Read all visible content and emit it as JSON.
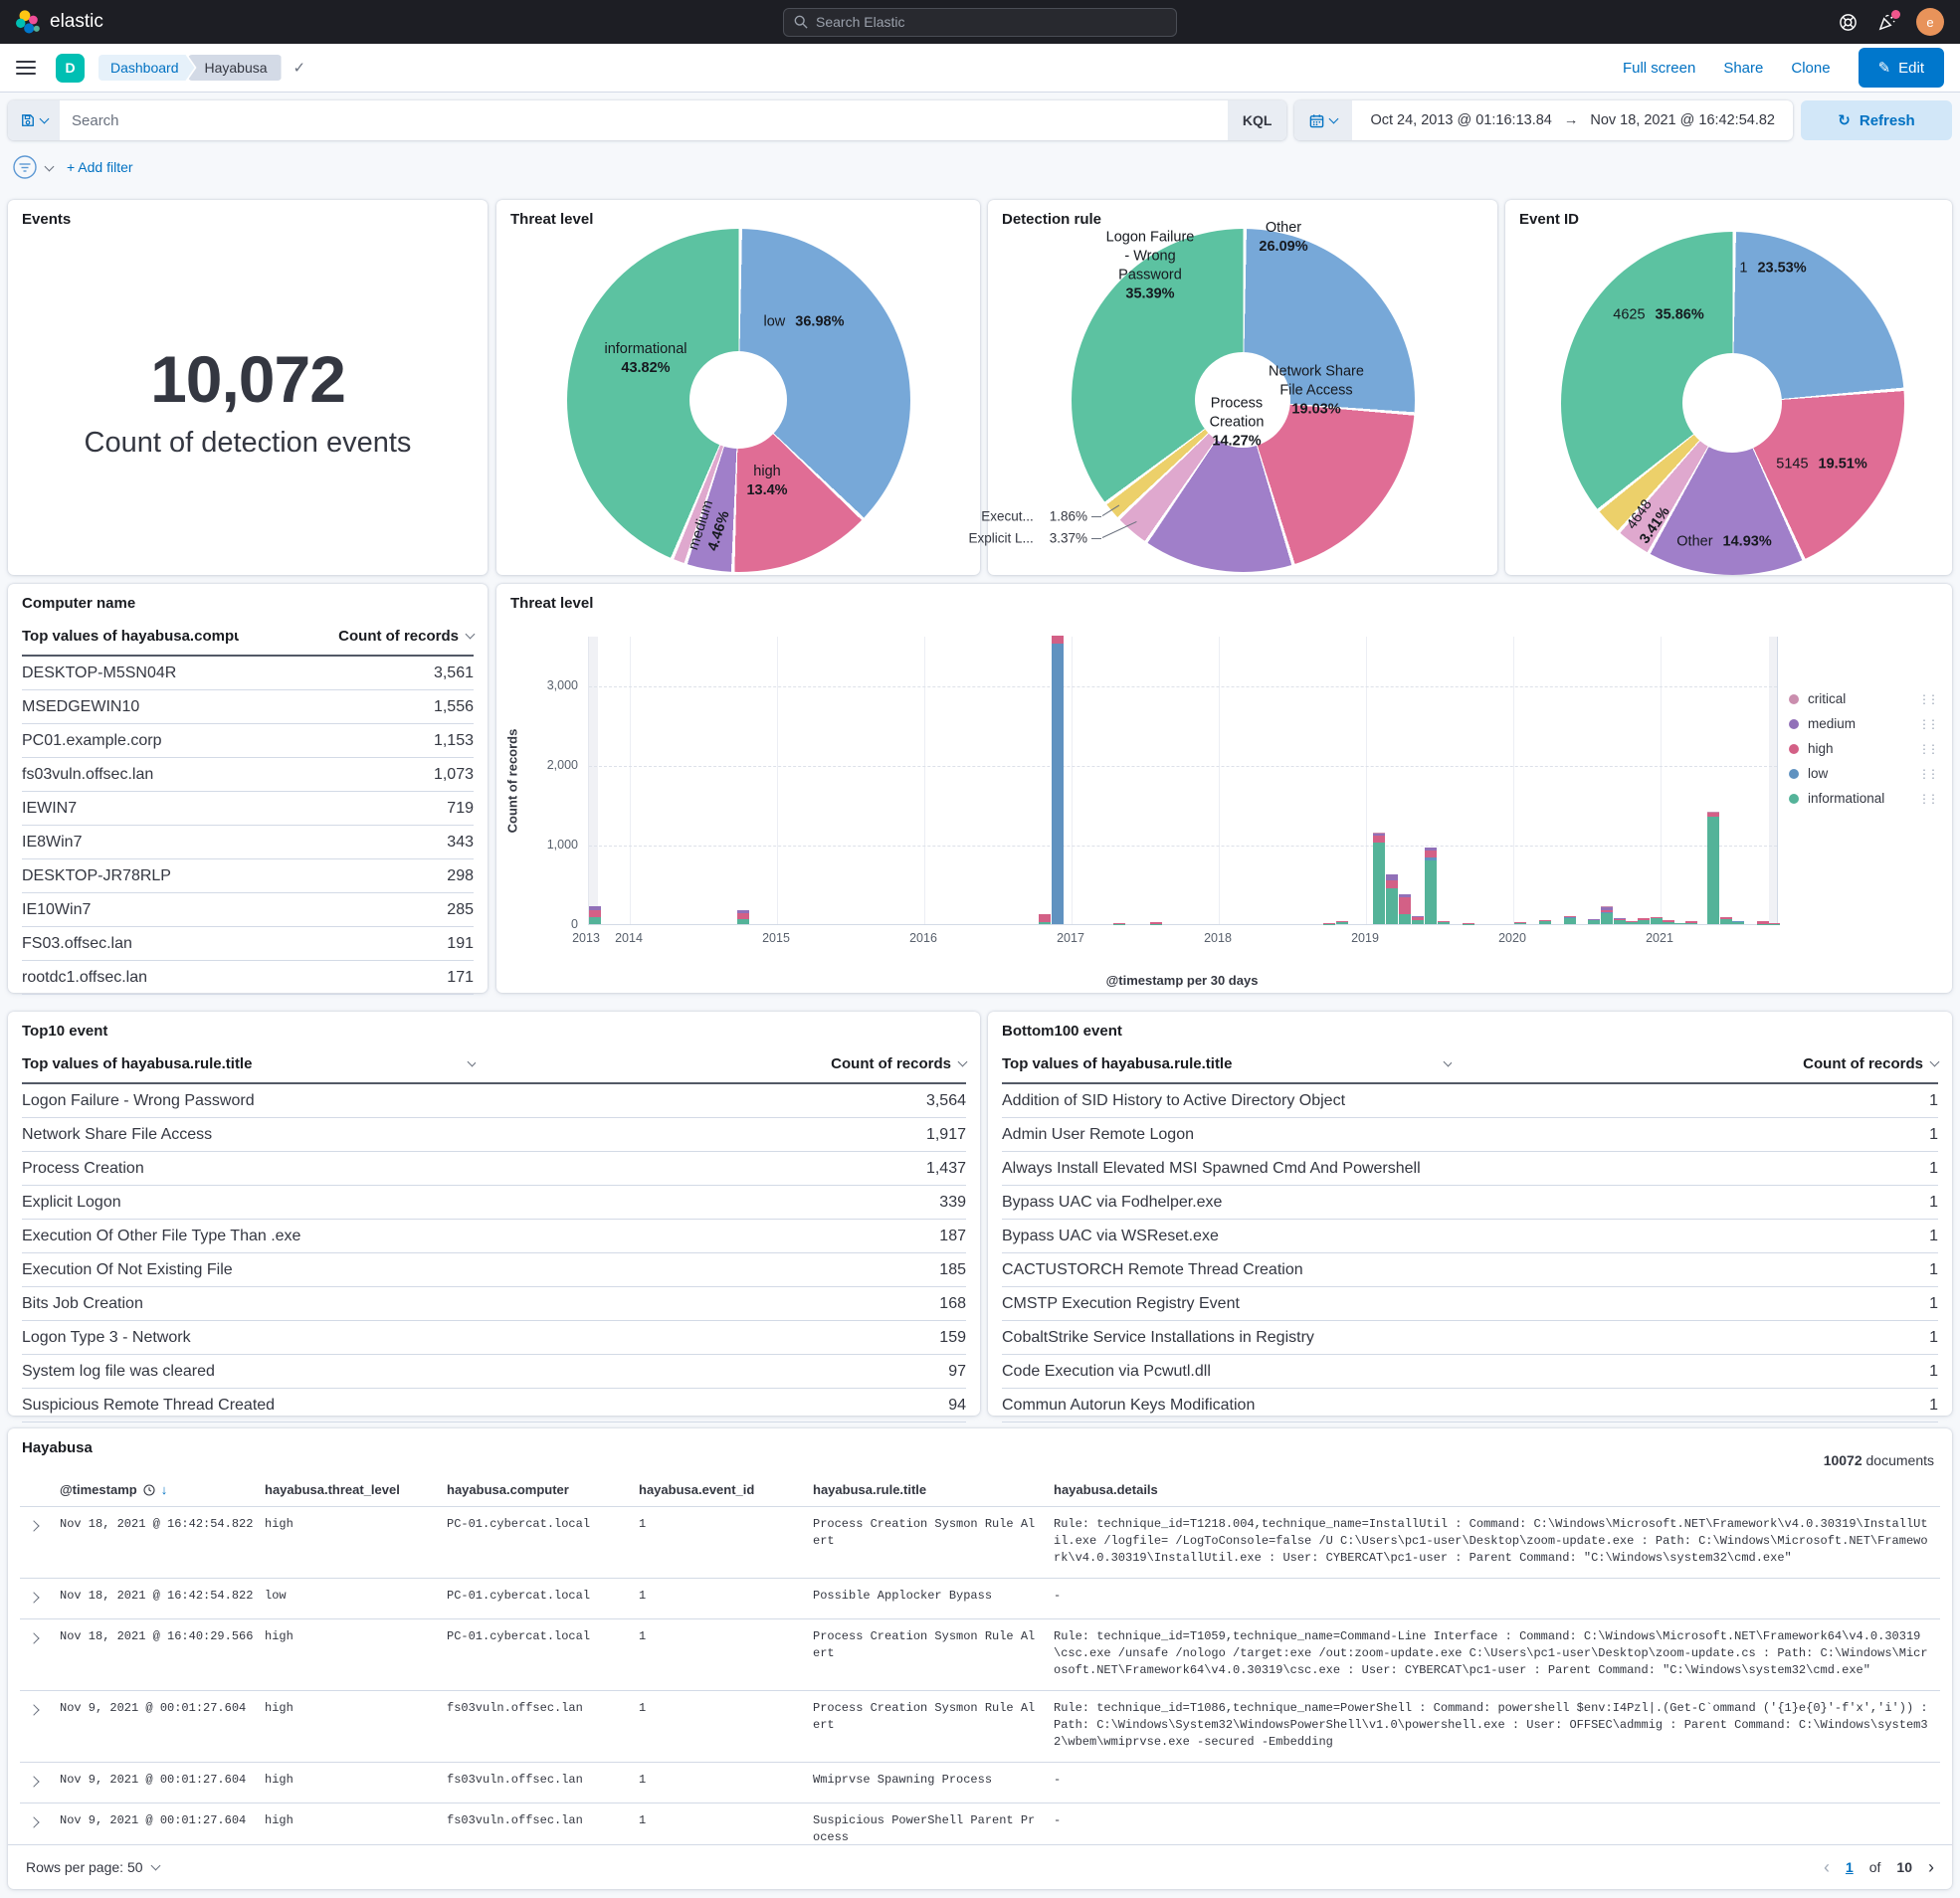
{
  "header": {
    "brand": "elastic",
    "search_placeholder": "Search Elastic",
    "avatar_initial": "e"
  },
  "nav": {
    "app_initial": "D",
    "breadcrumbs": [
      "Dashboard",
      "Hayabusa"
    ],
    "actions": [
      "Full screen",
      "Share",
      "Clone"
    ],
    "edit_label": "Edit"
  },
  "querybar": {
    "search_placeholder": "Search",
    "kql_label": "KQL",
    "date_from": "Oct 24, 2013 @ 01:16:13.84",
    "date_arrow": "→",
    "date_to": "Nov 18, 2021 @ 16:42:54.82",
    "refresh_label": "Refresh",
    "add_filter_label": "+ Add filter"
  },
  "icons": {
    "check": "✓",
    "pencil": "✎",
    "refresh": "↻",
    "sort_down": "↓",
    "legend_menu": "⋮⋮"
  },
  "panels": {
    "events": {
      "title": "Events",
      "value": "10,072",
      "label": "Count of detection events"
    },
    "threat_donut": {
      "title": "Threat level"
    },
    "detection_donut": {
      "title": "Detection rule"
    },
    "eventid_donut": {
      "title": "Event ID"
    },
    "computer_table": {
      "title": "Computer name",
      "col_field": "Top values of hayabusa.compu",
      "col_count": "Count of records",
      "rows": [
        [
          "DESKTOP-M5SN04R",
          "3,561"
        ],
        [
          "MSEDGEWIN10",
          "1,556"
        ],
        [
          "PC01.example.corp",
          "1,153"
        ],
        [
          "fs03vuln.offsec.lan",
          "1,073"
        ],
        [
          "IEWIN7",
          "719"
        ],
        [
          "IE8Win7",
          "343"
        ],
        [
          "DESKTOP-JR78RLP",
          "298"
        ],
        [
          "IE10Win7",
          "285"
        ],
        [
          "FS03.offsec.lan",
          "191"
        ],
        [
          "rootdc1.offsec.lan",
          "171"
        ]
      ]
    },
    "timechart": {
      "title": "Threat level"
    },
    "top10_table": {
      "title": "Top10 event",
      "col_field": "Top values of hayabusa.rule.title",
      "col_count": "Count of records",
      "rows": [
        [
          "Logon Failure - Wrong Password",
          "3,564"
        ],
        [
          "Network Share File Access",
          "1,917"
        ],
        [
          "Process Creation",
          "1,437"
        ],
        [
          "Explicit Logon",
          "339"
        ],
        [
          "Execution Of Other File Type Than .exe",
          "187"
        ],
        [
          "Execution Of Not Existing File",
          "185"
        ],
        [
          "Bits Job Creation",
          "168"
        ],
        [
          "Logon Type 3 - Network",
          "159"
        ],
        [
          "System log file was cleared",
          "97"
        ],
        [
          "Suspicious Remote Thread Created",
          "94"
        ]
      ]
    },
    "bottom100_table": {
      "title": "Bottom100 event",
      "col_field": "Top values of hayabusa.rule.title",
      "col_count": "Count of records",
      "rows": [
        [
          "Addition of SID History to Active Directory Object",
          "1"
        ],
        [
          "Admin User Remote Logon",
          "1"
        ],
        [
          "Always Install Elevated MSI Spawned Cmd And Powershell",
          "1"
        ],
        [
          "Bypass UAC via Fodhelper.exe",
          "1"
        ],
        [
          "Bypass UAC via WSReset.exe",
          "1"
        ],
        [
          "CACTUSTORCH Remote Thread Creation",
          "1"
        ],
        [
          "CMSTP Execution Registry Event",
          "1"
        ],
        [
          "CobaltStrike Service Installations in Registry",
          "1"
        ],
        [
          "Code Execution via Pcwutl.dll",
          "1"
        ],
        [
          "Commun Autorun Keys Modification",
          "1"
        ]
      ]
    },
    "doc_table": {
      "title": "Hayabusa",
      "doc_count": "10072",
      "doc_count_suffix": "documents",
      "columns": [
        "@timestamp",
        "hayabusa.threat_level",
        "hayabusa.computer",
        "hayabusa.event_id",
        "hayabusa.rule.title",
        "hayabusa.details"
      ],
      "rows": [
        {
          "timestamp": "Nov 18, 2021 @ 16:42:54.822",
          "threat_level": "high",
          "computer": "PC-01.cybercat.local",
          "event_id": "1",
          "rule_title": "Process Creation Sysmon Rule Alert",
          "details": "Rule: technique_id=T1218.004,technique_name=InstallUtil  :  Command: C:\\Windows\\Microsoft.NET\\Framework\\v4.0.30319\\InstallUtil.exe  /logfile= /LogToConsole=false /U C:\\Users\\pc1-user\\Desktop\\zoom-update.exe  :  Path: C:\\Windows\\Microsoft.NET\\Framework\\v4.0.30319\\InstallUtil.exe  :  User: CYBERCAT\\pc1-user  :  Parent Command: \"C:\\Windows\\system32\\cmd.exe\""
        },
        {
          "timestamp": "Nov 18, 2021 @ 16:42:54.822",
          "threat_level": "low",
          "computer": "PC-01.cybercat.local",
          "event_id": "1",
          "rule_title": "Possible Applocker Bypass",
          "details": "-"
        },
        {
          "timestamp": "Nov 18, 2021 @ 16:40:29.566",
          "threat_level": "high",
          "computer": "PC-01.cybercat.local",
          "event_id": "1",
          "rule_title": "Process Creation Sysmon Rule Alert",
          "details": "Rule: technique_id=T1059,technique_name=Command-Line Interface  :  Command: C:\\Windows\\Microsoft.NET\\Framework64\\v4.0.30319\\csc.exe  /unsafe /nologo /target:exe /out:zoom-update.exe C:\\Users\\pc1-user\\Desktop\\zoom-update.cs  :  Path: C:\\Windows\\Microsoft.NET\\Framework64\\v4.0.30319\\csc.exe  :  User: CYBERCAT\\pc1-user  :  Parent Command: \"C:\\Windows\\system32\\cmd.exe\""
        },
        {
          "timestamp": "Nov 9, 2021 @ 00:01:27.604",
          "threat_level": "high",
          "computer": "fs03vuln.offsec.lan",
          "event_id": "1",
          "rule_title": "Process Creation Sysmon Rule Alert",
          "details": "Rule: technique_id=T1086,technique_name=PowerShell  :  Command: powershell $env:I4Pzl|.(Get-C`ommand ('{1}e{0}'-f'x','i'))  :  Path: C:\\Windows\\System32\\WindowsPowerShell\\v1.0\\powershell.exe  :  User: OFFSEC\\admmig  :  Parent Command: C:\\Windows\\system32\\wbem\\wmiprvse.exe -secured -Embedding"
        },
        {
          "timestamp": "Nov 9, 2021 @ 00:01:27.604",
          "threat_level": "high",
          "computer": "fs03vuln.offsec.lan",
          "event_id": "1",
          "rule_title": "Wmiprvse Spawning Process",
          "details": "-"
        },
        {
          "timestamp": "Nov 9, 2021 @ 00:01:27.604",
          "threat_level": "high",
          "computer": "fs03vuln.offsec.lan",
          "event_id": "1",
          "rule_title": "Suspicious PowerShell Parent Process",
          "details": "-"
        }
      ],
      "rows_per_page_label": "Rows per page: 50",
      "pagination": {
        "prev": "‹",
        "page": "1",
        "of_label": "of",
        "total": "10",
        "next": "›"
      }
    }
  },
  "chart_data": [
    {
      "id": "donut-threat",
      "type": "pie",
      "title": "Threat level",
      "cx": 243,
      "cy": 201,
      "d": 345,
      "hole": 98,
      "slices": [
        {
          "label": "low",
          "value": 36.98,
          "color": "#77a8d8"
        },
        {
          "label": "high",
          "value": 13.4,
          "color": "#e06d95"
        },
        {
          "label": "medium",
          "value": 4.46,
          "color": "#a07fc9"
        },
        {
          "label": "critical",
          "value": 1.34,
          "color": "#dfa8ce"
        },
        {
          "label": "informational",
          "value": 43.82,
          "color": "#5cc2a1"
        }
      ],
      "labels": [
        {
          "x": 309,
          "y": 123,
          "lines": [
            {
              "n": "low",
              "p": "36.98%"
            }
          ]
        },
        {
          "x": 150,
          "y": 160,
          "lines": [
            {
              "n": "informational"
            },
            {
              "p": "43.82%"
            }
          ]
        },
        {
          "x": 272,
          "y": 283,
          "lines": [
            {
              "n": "high"
            },
            {
              "p": "13.4%"
            }
          ]
        },
        {
          "x": 215,
          "y": 330,
          "rot": -72,
          "lines": [
            {
              "n": "medium"
            },
            {
              "p": "4.46%"
            }
          ]
        }
      ]
    },
    {
      "id": "donut-detection",
      "type": "pie",
      "title": "Detection rule",
      "cx": 256,
      "cy": 201,
      "d": 345,
      "hole": 96,
      "slices": [
        {
          "label": "Other",
          "value": 26.09,
          "color": "#77a8d8"
        },
        {
          "label": "Network Share File Access",
          "value": 19.03,
          "color": "#e06d95"
        },
        {
          "label": "Process Creation",
          "value": 14.27,
          "color": "#a07fc9"
        },
        {
          "label": "Explicit L...",
          "value": 3.37,
          "color": "#dfa8ce"
        },
        {
          "label": "Execut...",
          "value": 1.86,
          "color": "#ecd06a"
        },
        {
          "label": "Logon Failure - Wrong Password",
          "value": 35.39,
          "color": "#5cc2a1"
        }
      ],
      "labels": [
        {
          "x": 163,
          "y": 66,
          "lines": [
            {
              "n": "Logon  Failure"
            },
            {
              "n": "- Wrong"
            },
            {
              "n": "Password"
            },
            {
              "p": "35.39%"
            }
          ]
        },
        {
          "x": 297,
          "y": 38,
          "lines": [
            {
              "n": "Other"
            },
            {
              "p": "26.09%"
            }
          ]
        },
        {
          "x": 330,
          "y": 192,
          "lines": [
            {
              "n": "Network  Share"
            },
            {
              "n": "File Access"
            },
            {
              "p": "19.03%"
            }
          ]
        },
        {
          "x": 250,
          "y": 224,
          "lines": [
            {
              "n": "Process"
            },
            {
              "n": "Creation"
            },
            {
              "p": "14.27%"
            }
          ]
        }
      ],
      "callouts": [
        {
          "x": 100,
          "y": 318,
          "n": "Execut...",
          "p": "1.86%",
          "segs": [
            {
              "x": 104,
              "y": 318,
              "len": 10,
              "ang": 0
            },
            {
              "x": 115,
              "y": 317,
              "len": 20,
              "ang": -32
            }
          ]
        },
        {
          "x": 100,
          "y": 340,
          "n": "Explicit L...",
          "p": "3.37%",
          "segs": [
            {
              "x": 104,
              "y": 340,
              "len": 10,
              "ang": 0
            },
            {
              "x": 115,
              "y": 339,
              "len": 38,
              "ang": -25
            }
          ]
        }
      ]
    },
    {
      "id": "donut-eventid",
      "type": "pie",
      "title": "Event ID",
      "cx": 228,
      "cy": 204,
      "d": 345,
      "hole": 100,
      "slices": [
        {
          "label": "1",
          "value": 23.53,
          "color": "#77a8d8"
        },
        {
          "label": "5145",
          "value": 19.51,
          "color": "#e06d95"
        },
        {
          "label": "Other",
          "value": 14.93,
          "color": "#a07fc9"
        },
        {
          "label": "4648",
          "value": 3.41,
          "color": "#dfa8ce"
        },
        {
          "label": "",
          "value": 2.76,
          "color": "#ecd06a"
        },
        {
          "label": "4625",
          "value": 35.86,
          "color": "#5cc2a1"
        }
      ],
      "labels": [
        {
          "x": 269,
          "y": 69,
          "lines": [
            {
              "n": "1",
              "p": "23.53%"
            }
          ]
        },
        {
          "x": 154,
          "y": 116,
          "lines": [
            {
              "n": "4625",
              "p": "35.86%"
            }
          ]
        },
        {
          "x": 318,
          "y": 266,
          "lines": [
            {
              "n": "5145",
              "p": "19.51%"
            }
          ]
        },
        {
          "x": 220,
          "y": 344,
          "lines": [
            {
              "n": "Other",
              "p": "14.93%"
            }
          ]
        },
        {
          "x": 143,
          "y": 322,
          "rot": -55,
          "lines": [
            {
              "n": "4648"
            },
            {
              "p": "3.41%"
            }
          ]
        }
      ]
    },
    {
      "id": "timechart",
      "type": "bar",
      "stacked": true,
      "title": "Threat level",
      "xlabel": "@timestamp per 30 days",
      "ylabel": "Count of records",
      "ylim": [
        0,
        3625
      ],
      "yticks": [
        {
          "v": 0,
          "t": "0"
        },
        {
          "v": 1000,
          "t": "1,000"
        },
        {
          "v": 2000,
          "t": "2,000"
        },
        {
          "v": 3000,
          "t": "3,000"
        }
      ],
      "xticks": [
        {
          "x": -2,
          "t": "2013",
          "grid": false
        },
        {
          "x": 41,
          "t": "2014",
          "grid": true
        },
        {
          "x": 189,
          "t": "2015",
          "grid": true
        },
        {
          "x": 337,
          "t": "2016",
          "grid": true
        },
        {
          "x": 485,
          "t": "2017",
          "grid": true
        },
        {
          "x": 633,
          "t": "2018",
          "grid": true
        },
        {
          "x": 781,
          "t": "2019",
          "grid": true
        },
        {
          "x": 929,
          "t": "2020",
          "grid": true
        },
        {
          "x": 1077,
          "t": "2021",
          "grid": true
        }
      ],
      "bands": [
        {
          "x": 0,
          "w": 9
        },
        {
          "x": 1186,
          "w": 9
        }
      ],
      "legend": [
        {
          "label": "critical",
          "color": "#ca8eae"
        },
        {
          "label": "medium",
          "color": "#9170b8"
        },
        {
          "label": "high",
          "color": "#d36086"
        },
        {
          "label": "low",
          "color": "#6092c0"
        },
        {
          "label": "informational",
          "color": "#54b399"
        }
      ],
      "order": [
        "informational",
        "low",
        "high",
        "medium",
        "critical"
      ],
      "colors": {
        "informational": "#54b399",
        "low": "#6092c0",
        "high": "#d36086",
        "medium": "#9170b8",
        "critical": "#ca8eae"
      },
      "bars": [
        {
          "x": 6,
          "informational": 85,
          "high": 85,
          "medium": 55
        },
        {
          "x": 155,
          "informational": 65,
          "high": 78,
          "medium": 35
        },
        {
          "x": 458,
          "informational": 28,
          "high": 95
        },
        {
          "x": 471,
          "low": 3530,
          "high": 95
        },
        {
          "x": 533,
          "informational": 5,
          "high": 8
        },
        {
          "x": 570,
          "informational": 2,
          "high": 22
        },
        {
          "x": 744,
          "informational": 6,
          "high": 8
        },
        {
          "x": 757,
          "informational": 22,
          "high": 12
        },
        {
          "x": 794,
          "informational": 1030,
          "high": 85,
          "medium": 20,
          "critical": 12
        },
        {
          "x": 807,
          "informational": 450,
          "high": 105,
          "medium": 68
        },
        {
          "x": 820,
          "informational": 130,
          "high": 208,
          "medium": 42
        },
        {
          "x": 833,
          "informational": 46,
          "high": 40,
          "medium": 15
        },
        {
          "x": 846,
          "informational": 800,
          "low": 42,
          "high": 82,
          "medium": 45
        },
        {
          "x": 859,
          "informational": 30,
          "high": 12
        },
        {
          "x": 884,
          "informational": 5,
          "high": 6
        },
        {
          "x": 936,
          "informational": 16,
          "high": 5
        },
        {
          "x": 961,
          "informational": 40,
          "high": 9
        },
        {
          "x": 986,
          "informational": 80,
          "low": 4,
          "high": 12
        },
        {
          "x": 1010,
          "informational": 44,
          "high": 12,
          "medium": 4
        },
        {
          "x": 1023,
          "informational": 140,
          "low": 8,
          "high": 26,
          "medium": 42,
          "critical": 6
        },
        {
          "x": 1036,
          "informational": 56,
          "high": 13,
          "medium": 5
        },
        {
          "x": 1048,
          "informational": 28,
          "high": 9
        },
        {
          "x": 1060,
          "informational": 56,
          "high": 18
        },
        {
          "x": 1073,
          "informational": 72,
          "high": 14
        },
        {
          "x": 1085,
          "informational": 28,
          "high": 24
        },
        {
          "x": 1096,
          "informational": 8,
          "low": 6,
          "high": 3
        },
        {
          "x": 1108,
          "informational": 12,
          "high": 26
        },
        {
          "x": 1130,
          "informational": 1345,
          "high": 50,
          "critical": 14
        },
        {
          "x": 1143,
          "informational": 62,
          "high": 20,
          "medium": 6,
          "critical": 6
        },
        {
          "x": 1155,
          "informational": 22,
          "low": 12,
          "high": 5
        },
        {
          "x": 1180,
          "informational": 4,
          "high": 30
        },
        {
          "x": 1191,
          "informational": 2,
          "high": 8
        }
      ]
    }
  ]
}
